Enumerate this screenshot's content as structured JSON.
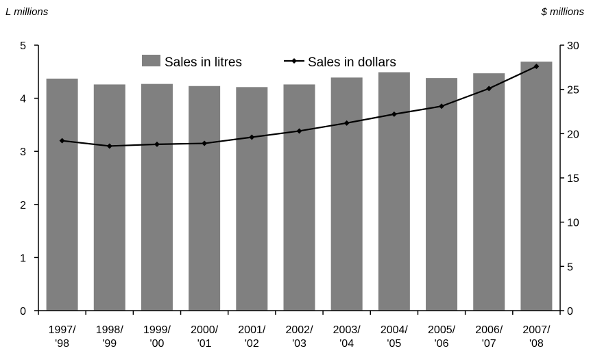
{
  "chart_data": {
    "type": "bar",
    "left_axis_unit": "L millions",
    "right_axis_unit": "$ millions",
    "categories": [
      [
        "1997/",
        "'98"
      ],
      [
        "1998/",
        "'99"
      ],
      [
        "1999/",
        "'00"
      ],
      [
        "2000/",
        "'01"
      ],
      [
        "2001/",
        "'02"
      ],
      [
        "2002/",
        "'03"
      ],
      [
        "2003/",
        "'04"
      ],
      [
        "2004/",
        "'05"
      ],
      [
        "2005/",
        "'06"
      ],
      [
        "2006/",
        "'07"
      ],
      [
        "2007/",
        "'08"
      ]
    ],
    "series": [
      {
        "name": "Sales in litres",
        "type": "bar",
        "axis": "left",
        "color": "#808080",
        "values": [
          4.37,
          4.26,
          4.27,
          4.23,
          4.21,
          4.26,
          4.39,
          4.49,
          4.38,
          4.47,
          4.69
        ]
      },
      {
        "name": "Sales in dollars",
        "type": "line",
        "axis": "right",
        "color": "#000000",
        "values": [
          19.2,
          18.6,
          18.8,
          18.9,
          19.6,
          20.3,
          21.2,
          22.2,
          23.1,
          25.1,
          27.6
        ]
      }
    ],
    "y_left_lim": [
      0,
      5
    ],
    "y_left_ticks": [
      0,
      1,
      2,
      3,
      4,
      5
    ],
    "y_right_lim": [
      0,
      30
    ],
    "y_right_ticks": [
      0,
      5,
      10,
      15,
      20,
      25,
      30
    ],
    "grid": false,
    "legend_position": "top"
  }
}
